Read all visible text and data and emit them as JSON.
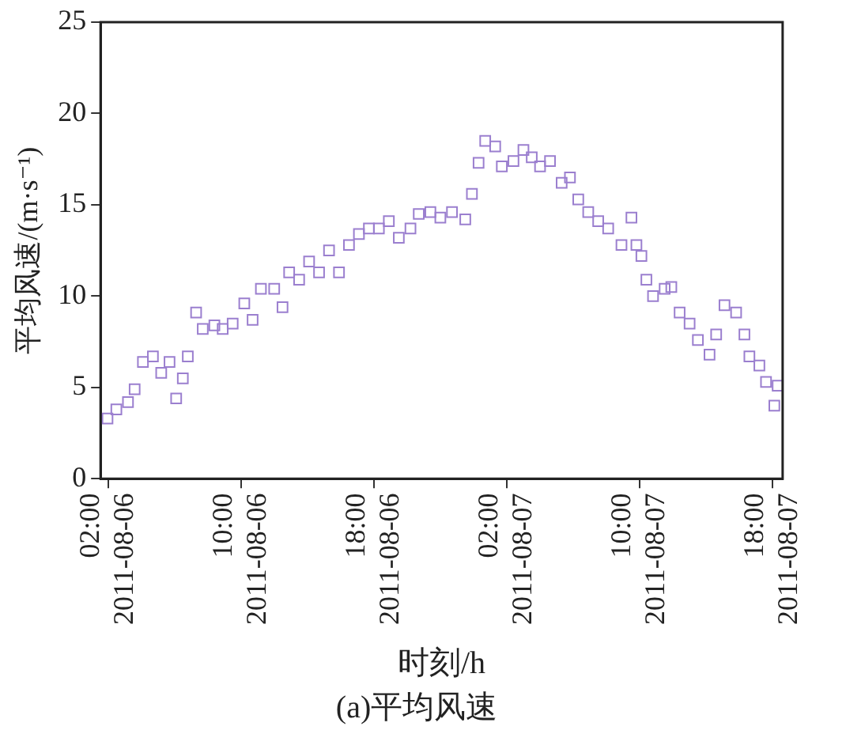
{
  "chart_data": {
    "type": "scatter",
    "xlabel": "时刻/h",
    "ylabel": "平均风速/(m·s⁻¹)",
    "annotations": [
      "(a)平均风速"
    ],
    "x": [
      "2011-08-06T01:58",
      "2011-08-06T02:30",
      "2011-08-06T03:12",
      "2011-08-06T03:36",
      "2011-08-06T04:06",
      "2011-08-06T04:42",
      "2011-08-06T05:12",
      "2011-08-06T05:42",
      "2011-08-06T06:06",
      "2011-08-06T06:30",
      "2011-08-06T06:48",
      "2011-08-06T07:18",
      "2011-08-06T07:42",
      "2011-08-06T08:24",
      "2011-08-06T08:54",
      "2011-08-06T09:30",
      "2011-08-06T10:12",
      "2011-08-06T10:42",
      "2011-08-06T11:12",
      "2011-08-06T12:00",
      "2011-08-06T12:30",
      "2011-08-06T12:54",
      "2011-08-06T13:30",
      "2011-08-06T14:06",
      "2011-08-06T14:42",
      "2011-08-06T15:18",
      "2011-08-06T15:54",
      "2011-08-06T16:30",
      "2011-08-06T17:06",
      "2011-08-06T17:42",
      "2011-08-06T18:18",
      "2011-08-06T18:54",
      "2011-08-06T19:30",
      "2011-08-06T20:12",
      "2011-08-06T20:42",
      "2011-08-06T21:24",
      "2011-08-06T22:00",
      "2011-08-06T22:42",
      "2011-08-06T23:30",
      "2011-08-06T23:54",
      "2011-08-07T00:18",
      "2011-08-07T00:42",
      "2011-08-07T01:18",
      "2011-08-07T01:42",
      "2011-08-07T02:24",
      "2011-08-07T03:00",
      "2011-08-07T03:30",
      "2011-08-07T04:00",
      "2011-08-07T04:36",
      "2011-08-07T05:18",
      "2011-08-07T05:48",
      "2011-08-07T06:18",
      "2011-08-07T06:54",
      "2011-08-07T07:30",
      "2011-08-07T08:06",
      "2011-08-07T08:54",
      "2011-08-07T09:30",
      "2011-08-07T09:48",
      "2011-08-07T10:06",
      "2011-08-07T10:24",
      "2011-08-07T10:48",
      "2011-08-07T11:30",
      "2011-08-07T11:54",
      "2011-08-07T12:24",
      "2011-08-07T13:00",
      "2011-08-07T13:30",
      "2011-08-07T14:12",
      "2011-08-07T14:36",
      "2011-08-07T15:06",
      "2011-08-07T15:48",
      "2011-08-07T16:18",
      "2011-08-07T16:36",
      "2011-08-07T17:12",
      "2011-08-07T17:36",
      "2011-08-07T18:06",
      "2011-08-07T18:18"
    ],
    "series": [
      {
        "color": "#9b7fcf",
        "values": [
          3.3,
          3.8,
          4.2,
          4.9,
          6.4,
          6.7,
          5.8,
          6.4,
          4.4,
          5.5,
          6.7,
          9.1,
          8.2,
          8.4,
          8.2,
          8.5,
          9.6,
          8.7,
          10.4,
          10.4,
          9.4,
          11.3,
          10.9,
          11.9,
          11.3,
          12.5,
          11.3,
          12.8,
          13.4,
          13.7,
          13.7,
          14.1,
          13.2,
          13.7,
          14.5,
          14.6,
          14.3,
          14.6,
          14.2,
          15.6,
          17.3,
          18.5,
          18.2,
          17.1,
          17.4,
          18.0,
          17.6,
          17.1,
          17.4,
          16.2,
          16.5,
          15.3,
          14.6,
          14.1,
          13.7,
          12.8,
          14.3,
          12.8,
          12.2,
          10.9,
          10.0,
          10.4,
          10.5,
          9.1,
          8.5,
          7.6,
          6.8,
          7.9,
          9.5,
          9.1,
          7.9,
          6.7,
          6.2,
          5.3,
          4.0,
          5.1
        ]
      }
    ],
    "xlim": [
      "2011-08-06T01:33",
      "2011-08-07T18:36"
    ],
    "xticks": [
      {
        "value": "2011-08-06T02:00",
        "label": "02:00\n2011-08-06"
      },
      {
        "value": "2011-08-06T10:00",
        "label": "10:00\n2011-08-06"
      },
      {
        "value": "2011-08-06T18:00",
        "label": "18:00\n2011-08-06"
      },
      {
        "value": "2011-08-07T02:00",
        "label": "02:00\n2011-08-07"
      },
      {
        "value": "2011-08-07T10:00",
        "label": "10:00\n2011-08-07"
      },
      {
        "value": "2011-08-07T18:00",
        "label": "18:00\n2011-08-07"
      }
    ],
    "ylim": [
      0,
      25
    ],
    "yticks": [
      0,
      5,
      10,
      15,
      20,
      25
    ],
    "marker": "square",
    "grid": false,
    "legend": false
  }
}
